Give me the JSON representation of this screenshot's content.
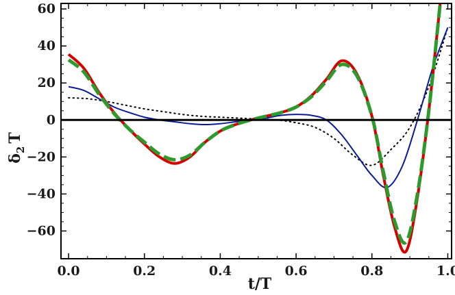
{
  "chart_data": {
    "type": "line",
    "xlabel": "t/T",
    "ylabel": "δ₂T",
    "ylabel_main": "δ",
    "ylabel_sub": "2",
    "ylabel_tail": "T",
    "xlim": [
      -0.02,
      1.01
    ],
    "ylim": [
      -75,
      63
    ],
    "xticks": [
      0.0,
      0.2,
      0.4,
      0.6,
      0.8,
      1.0
    ],
    "xtick_labels": [
      "0.0",
      "0.2",
      "0.4",
      "0.6",
      "0.8",
      "1.0"
    ],
    "yticks": [
      -60,
      -40,
      -20,
      0,
      20,
      40,
      60
    ],
    "ytick_labels": [
      "−60",
      "−40",
      "−20",
      "0",
      "20",
      "40",
      "60"
    ],
    "reference_line": 0,
    "grid": false,
    "series": [
      {
        "color": "#d40000",
        "style": "solid",
        "width": 4,
        "x": [
          0.0,
          0.04,
          0.08,
          0.12,
          0.16,
          0.2,
          0.24,
          0.28,
          0.32,
          0.36,
          0.4,
          0.44,
          0.48,
          0.52,
          0.56,
          0.6,
          0.64,
          0.68,
          0.72,
          0.76,
          0.8,
          0.83,
          0.86,
          0.89,
          0.92,
          0.95,
          0.98
        ],
        "y": [
          35.5,
          28,
          15,
          4,
          -5,
          -13,
          -20,
          -23.5,
          -20,
          -12,
          -6,
          -2.5,
          0,
          2,
          4,
          7,
          13,
          22,
          32,
          25,
          2,
          -30,
          -58,
          -71,
          -42,
          5,
          63
        ]
      },
      {
        "color": "#2e9a2e",
        "style": "dashed",
        "width": 5,
        "x": [
          0.0,
          0.04,
          0.08,
          0.12,
          0.16,
          0.2,
          0.24,
          0.28,
          0.32,
          0.36,
          0.4,
          0.44,
          0.48,
          0.52,
          0.56,
          0.6,
          0.64,
          0.68,
          0.72,
          0.76,
          0.8,
          0.83,
          0.86,
          0.89,
          0.92,
          0.95,
          0.98
        ],
        "y": [
          32.5,
          26,
          14,
          3.5,
          -5,
          -12,
          -18.5,
          -21.5,
          -19,
          -12,
          -6,
          -2.5,
          0,
          2,
          4,
          7,
          12.5,
          21,
          30,
          24,
          2,
          -28,
          -55,
          -66,
          -40,
          5,
          63
        ]
      },
      {
        "color": "#0a1a99",
        "style": "solid",
        "width": 2,
        "x": [
          0.0,
          0.04,
          0.08,
          0.12,
          0.16,
          0.2,
          0.24,
          0.28,
          0.32,
          0.36,
          0.4,
          0.44,
          0.48,
          0.52,
          0.56,
          0.6,
          0.64,
          0.68,
          0.72,
          0.76,
          0.8,
          0.84,
          0.88,
          0.92,
          0.96,
          1.0
        ],
        "y": [
          18,
          16,
          11.5,
          7,
          4,
          1.5,
          0,
          -1,
          -2,
          -2.5,
          -2,
          -1,
          0,
          1,
          2.5,
          3,
          2.5,
          0,
          -8,
          -19,
          -30,
          -36.5,
          -25,
          0,
          28,
          50
        ]
      },
      {
        "color": "#000000",
        "style": "dotted",
        "width": 2,
        "x": [
          0.0,
          0.05,
          0.1,
          0.15,
          0.2,
          0.25,
          0.3,
          0.35,
          0.4,
          0.45,
          0.5,
          0.55,
          0.6,
          0.65,
          0.7,
          0.75,
          0.8,
          0.85,
          0.9,
          0.95,
          1.0
        ],
        "y": [
          12,
          11.5,
          10,
          8,
          6,
          4.5,
          3,
          2,
          1.5,
          1,
          0.5,
          0,
          -1.5,
          -4,
          -10,
          -19,
          -24.5,
          -16,
          -4,
          18,
          50
        ]
      }
    ]
  }
}
